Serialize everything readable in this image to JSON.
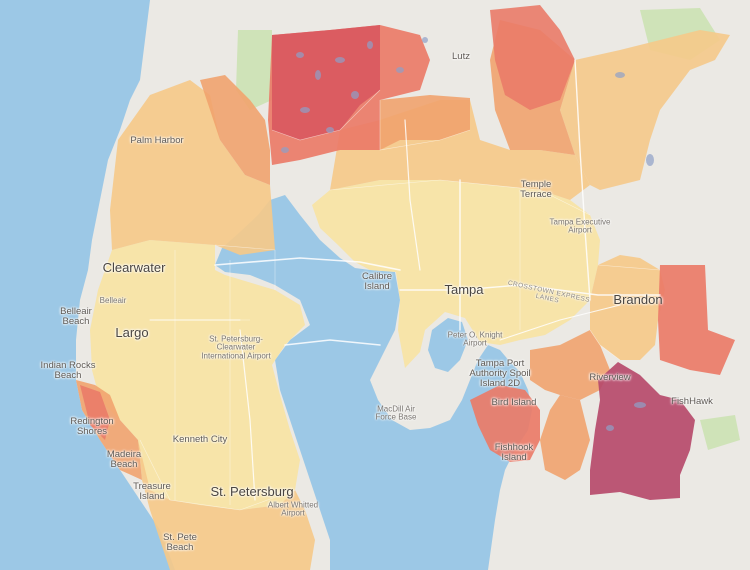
{
  "map": {
    "colors": {
      "water": "#9cc8e6",
      "land": "#ebe9e4",
      "park": "#cfe3b8",
      "tier1": "#f7e3a4",
      "tier2": "#f5c98a",
      "tier3": "#f1a36e",
      "tier4": "#ea7b68",
      "tier5": "#d9595f",
      "tier6": "#b64a6b"
    },
    "labels": {
      "clearwater": "Clearwater",
      "tampa": "Tampa",
      "brandon": "Brandon",
      "st_petersburg": "St. Petersburg",
      "largo": "Largo",
      "kenneth_city": "Kenneth City",
      "palm_harbor": "Palm Harbor",
      "lutz": "Lutz",
      "temple_terrace": "Temple\nTerrace",
      "tampa_exec_airport": "Tampa Executive\nAirport",
      "calibre_island": "Calibre\nIsland",
      "belleair_beach": "Belleair\nBeach",
      "belleair": "Belleair",
      "indian_rocks_beach": "Indian Rocks\nBeach",
      "redington_shores": "Redington\nShores",
      "madeira_beach": "Madeira\nBeach",
      "treasure_island": "Treasure\nIsland",
      "st_pete_beach": "St. Pete\nBeach",
      "spc_airport": "St. Petersburg-\nClearwater\nInternational Airport",
      "macdill": "MacDill Air\nForce Base",
      "tampa_port": "Tampa Port\nAuthority Spoil\nIsland 2D",
      "bird_island": "Bird Island",
      "fishhook_island": "Fishhook\nIsland",
      "riverview": "Riverview",
      "fishhawk": "FishHawk",
      "albert_whitted": "Albert Whitted\nAirport",
      "peter_knight": "Peter O. Knight\nAirport",
      "crosstown": "CROSSTOWN EXPRESS\nLANES"
    }
  }
}
